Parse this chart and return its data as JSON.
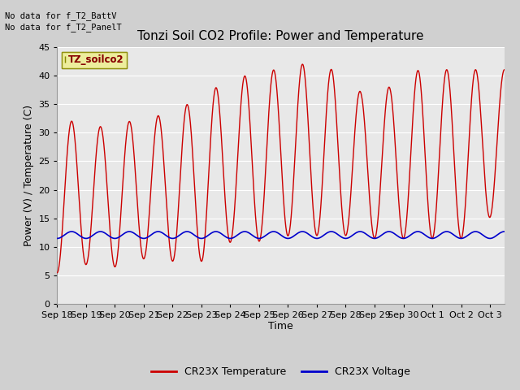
{
  "title": "Tonzi Soil CO2 Profile: Power and Temperature",
  "ylabel": "Power (V) / Temperature (C)",
  "xlabel": "Time",
  "ylim": [
    0,
    45
  ],
  "yticks": [
    0,
    5,
    10,
    15,
    20,
    25,
    30,
    35,
    40,
    45
  ],
  "xtick_labels": [
    "Sep 18",
    "Sep 19",
    "Sep 20",
    "Sep 21",
    "Sep 22",
    "Sep 23",
    "Sep 24",
    "Sep 25",
    "Sep 26",
    "Sep 27",
    "Sep 28",
    "Sep 29",
    "Sep 30",
    "Oct 1",
    "Oct 2",
    "Oct 3"
  ],
  "legend_label_box": "TZ_soilco2",
  "no_data_text1": "No data for f_T2_BattV",
  "no_data_text2": "No data for f_T2_PanelT",
  "legend_temp": "CR23X Temperature",
  "legend_volt": "CR23X Voltage",
  "fig_bg_color": "#d0d0d0",
  "plot_bg_color": "#e8e8e8",
  "grid_color": "#ffffff",
  "temp_color": "#cc0000",
  "volt_color": "#0000cc",
  "title_fontsize": 11,
  "axis_fontsize": 9,
  "tick_fontsize": 8,
  "num_days": 15.5,
  "peak_days": [
    0.55,
    1.55,
    2.55,
    3.55,
    4.55,
    5.55,
    6.55,
    7.55,
    8.55,
    9.55,
    10.55,
    11.55,
    12.55,
    13.55
  ],
  "peak_temps": [
    32,
    31,
    32,
    33,
    35,
    38,
    40,
    41,
    42,
    41,
    37,
    38,
    41,
    41
  ],
  "trough_days": [
    0.0,
    1.05,
    2.05,
    3.05,
    4.05,
    5.05,
    6.05,
    7.05,
    8.05,
    9.05,
    10.05,
    11.05,
    12.05,
    13.05,
    14.2,
    15.5
  ],
  "trough_temps": [
    5.5,
    7,
    6.5,
    8,
    7.5,
    7.5,
    11,
    11,
    12,
    12,
    12,
    11.5,
    11.5,
    11.5,
    11.5,
    17.5
  ],
  "volt_base": 12.1,
  "volt_amp": 0.6
}
